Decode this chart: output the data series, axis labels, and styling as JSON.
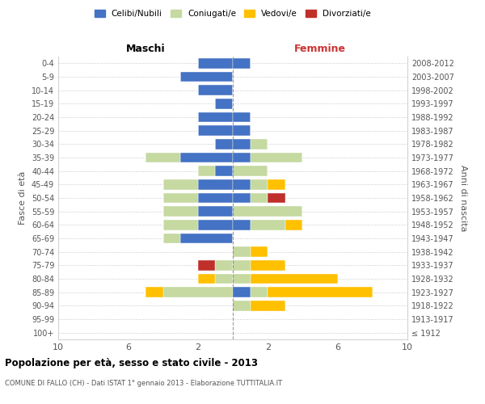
{
  "age_groups": [
    "100+",
    "95-99",
    "90-94",
    "85-89",
    "80-84",
    "75-79",
    "70-74",
    "65-69",
    "60-64",
    "55-59",
    "50-54",
    "45-49",
    "40-44",
    "35-39",
    "30-34",
    "25-29",
    "20-24",
    "15-19",
    "10-14",
    "5-9",
    "0-4"
  ],
  "birth_years": [
    "≤ 1912",
    "1913-1917",
    "1918-1922",
    "1923-1927",
    "1928-1932",
    "1933-1937",
    "1938-1942",
    "1943-1947",
    "1948-1952",
    "1953-1957",
    "1958-1962",
    "1963-1967",
    "1968-1972",
    "1973-1977",
    "1978-1982",
    "1983-1987",
    "1988-1992",
    "1993-1997",
    "1998-2002",
    "2003-2007",
    "2008-2012"
  ],
  "maschi": {
    "celibi": [
      0,
      0,
      0,
      0,
      0,
      0,
      0,
      3,
      2,
      2,
      2,
      2,
      1,
      3,
      1,
      2,
      2,
      1,
      2,
      3,
      2
    ],
    "coniugati": [
      0,
      0,
      0,
      4,
      1,
      1,
      0,
      1,
      2,
      2,
      2,
      2,
      1,
      2,
      0,
      0,
      0,
      0,
      0,
      0,
      0
    ],
    "vedovi": [
      0,
      0,
      0,
      1,
      1,
      0,
      0,
      0,
      0,
      0,
      0,
      0,
      0,
      0,
      0,
      0,
      0,
      0,
      0,
      0,
      0
    ],
    "divorziati": [
      0,
      0,
      0,
      0,
      0,
      1,
      0,
      0,
      0,
      0,
      0,
      0,
      0,
      0,
      0,
      0,
      0,
      0,
      0,
      0,
      0
    ]
  },
  "femmine": {
    "nubili": [
      0,
      0,
      0,
      1,
      0,
      0,
      0,
      0,
      1,
      0,
      1,
      1,
      0,
      1,
      1,
      1,
      1,
      0,
      0,
      0,
      1
    ],
    "coniugate": [
      0,
      0,
      1,
      1,
      1,
      1,
      1,
      0,
      2,
      4,
      1,
      1,
      2,
      3,
      1,
      0,
      0,
      0,
      0,
      0,
      0
    ],
    "vedove": [
      0,
      0,
      2,
      6,
      5,
      2,
      1,
      0,
      1,
      0,
      0,
      1,
      0,
      0,
      0,
      0,
      0,
      0,
      0,
      0,
      0
    ],
    "divorziate": [
      0,
      0,
      0,
      0,
      0,
      0,
      0,
      0,
      0,
      0,
      1,
      0,
      0,
      0,
      0,
      0,
      0,
      0,
      0,
      0,
      0
    ]
  },
  "colors": {
    "celibi": "#4472c4",
    "coniugati": "#c5d9a0",
    "vedovi": "#ffc000",
    "divorziati": "#c0302a"
  },
  "xlim": 10,
  "title": "Popolazione per età, sesso e stato civile - 2013",
  "subtitle": "COMUNE DI FALLO (CH) - Dati ISTAT 1° gennaio 2013 - Elaborazione TUTTITALIA.IT",
  "ylabel_left": "Fasce di età",
  "ylabel_right": "Anni di nascita",
  "xlabel_left": "Maschi",
  "xlabel_right": "Femmine",
  "legend_labels": [
    "Celibi/Nubili",
    "Coniugati/e",
    "Vedovi/e",
    "Divorziati/e"
  ],
  "fig_width": 6.0,
  "fig_height": 5.0,
  "dpi": 100
}
